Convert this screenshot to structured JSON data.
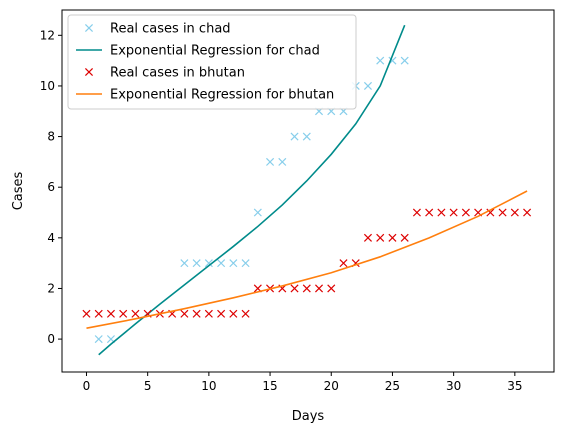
{
  "chart_data": {
    "type": "scatter",
    "xlabel": "Days",
    "ylabel": "Cases",
    "xlim": [
      -2,
      38.2
    ],
    "ylim": [
      -1.3,
      13.0
    ],
    "xticks": [
      0,
      5,
      10,
      15,
      20,
      25,
      30,
      35
    ],
    "yticks": [
      0,
      2,
      4,
      6,
      8,
      10,
      12
    ],
    "grid": false,
    "legend_position": "top-left",
    "series": [
      {
        "name": "Real cases in chad",
        "kind": "scatter",
        "marker": "x",
        "color": "#87ceeb",
        "x": [
          1,
          2,
          8,
          9,
          10,
          11,
          12,
          13,
          14,
          15,
          16,
          17,
          18,
          19,
          20,
          21,
          22,
          23,
          24,
          25,
          26
        ],
        "y": [
          0,
          0,
          3,
          3,
          3,
          3,
          3,
          3,
          5,
          7,
          7,
          8,
          8,
          9,
          9,
          9,
          10,
          10,
          11,
          11,
          11
        ]
      },
      {
        "name": "Exponential Regression for chad",
        "kind": "line",
        "color": "#008b8b",
        "x": [
          1,
          2,
          4,
          6,
          8,
          10,
          12,
          14,
          16,
          18,
          20,
          22,
          24,
          26
        ],
        "y": [
          -0.62,
          -0.2,
          0.6,
          1.38,
          2.14,
          2.9,
          3.66,
          4.45,
          5.3,
          6.25,
          7.3,
          8.5,
          10.0,
          12.4
        ]
      },
      {
        "name": "Real cases in bhutan",
        "kind": "scatter",
        "marker": "x",
        "color": "#dd0000",
        "x": [
          0,
          1,
          2,
          3,
          4,
          5,
          6,
          7,
          8,
          9,
          10,
          11,
          12,
          13,
          14,
          15,
          16,
          17,
          18,
          19,
          20,
          21,
          22,
          23,
          24,
          25,
          26,
          27,
          28,
          29,
          30,
          31,
          32,
          33,
          34,
          35,
          36
        ],
        "y": [
          1,
          1,
          1,
          1,
          1,
          1,
          1,
          1,
          1,
          1,
          1,
          1,
          1,
          1,
          2,
          2,
          2,
          2,
          2,
          2,
          2,
          3,
          3,
          4,
          4,
          4,
          4,
          5,
          5,
          5,
          5,
          5,
          5,
          5,
          5,
          5,
          5
        ]
      },
      {
        "name": "Exponential Regression for bhutan",
        "kind": "line",
        "color": "#ff7f0e",
        "x": [
          0,
          4,
          8,
          12,
          16,
          20,
          24,
          28,
          32,
          36
        ],
        "y": [
          0.43,
          0.8,
          1.2,
          1.63,
          2.1,
          2.62,
          3.25,
          4.0,
          4.85,
          5.85
        ]
      }
    ]
  }
}
